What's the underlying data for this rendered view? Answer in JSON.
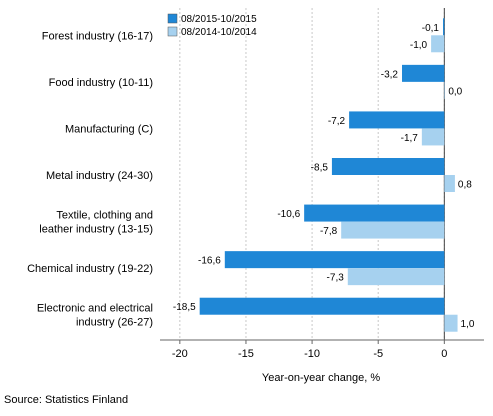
{
  "chart_data": {
    "type": "bar",
    "orientation": "horizontal",
    "categories": [
      [
        "Forest industry (16-17)"
      ],
      [
        "Food industry (10-11)"
      ],
      [
        "Manufacturing (C)"
      ],
      [
        "Metal industry (24-30)"
      ],
      [
        "Textile, clothing and",
        "leather industry (13-15)"
      ],
      [
        "Chemical industry (19-22)"
      ],
      [
        "Electronic and electrical",
        "industry (26-27)"
      ]
    ],
    "series": [
      {
        "name": "08/2015-10/2015",
        "color": "#1f87d6",
        "values": [
          -0.1,
          -3.2,
          -7.2,
          -8.5,
          -10.6,
          -16.6,
          -18.5
        ],
        "labels": [
          "-0,1",
          "-3,2",
          "-7,2",
          "-8,5",
          "-10,6",
          "-16,6",
          "-18,5"
        ]
      },
      {
        "name": "08/2014-10/2014",
        "color": "#a6d1ef",
        "values": [
          -1.0,
          0.0,
          -1.7,
          0.8,
          -7.8,
          -7.3,
          1.0
        ],
        "labels": [
          "-1,0",
          "0,0",
          "-1,7",
          "0,8",
          "-7,8",
          "-7,3",
          "1,0"
        ]
      }
    ],
    "xlim": [
      -21.5,
      3
    ],
    "xticks": [
      -20,
      -15,
      -10,
      -5,
      0
    ],
    "xtick_labels": [
      "-20",
      "-15",
      "-10",
      "-5",
      "0"
    ],
    "xlabel": "Year-on-year change, %",
    "grid": "vertical",
    "legend": "top"
  },
  "footer": {
    "source": "Source: Statistics Finland"
  }
}
